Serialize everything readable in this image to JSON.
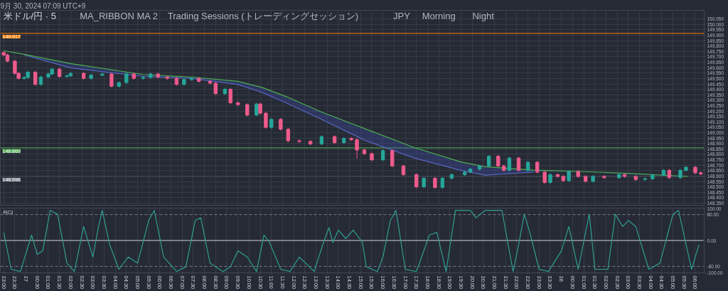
{
  "chart_data": [
    {
      "type": "candlestick",
      "title": "米ドル/円 · 5",
      "subtitle": "9月 30, 2024 07:09 UTC+9",
      "annotations": [
        "MA_RIBBON MA 2",
        "Trading Sessions (トレーディングセッション)",
        "JPY",
        "Morning",
        "Night"
      ],
      "xlim": [
        "2024-09-26T22:51",
        "2024-09-28T06:24"
      ],
      "ylim": [
        148.33,
        150.13
      ],
      "grid": true,
      "tick_labels": "y",
      "xticks": [
        {
          "value": "2024-09-26T23:00",
          "label": null
        },
        {
          "value": "2024-09-26T23:30",
          "label": null
        },
        {
          "value": "2024-09-27T00:00",
          "label": null
        },
        {
          "value": "2024-09-27T00:30",
          "label": null
        },
        {
          "value": "2024-09-27T01:00",
          "label": null
        },
        {
          "value": "2024-09-27T01:30",
          "label": null
        },
        {
          "value": "2024-09-27T02:00",
          "label": null
        },
        {
          "value": "2024-09-27T02:30",
          "label": null
        },
        {
          "value": "2024-09-27T03:00",
          "label": null
        },
        {
          "value": "2024-09-27T03:30",
          "label": null
        },
        {
          "value": "2024-09-27T04:00",
          "label": null
        },
        {
          "value": "2024-09-27T04:30",
          "label": null
        },
        {
          "value": "2024-09-27T05:00",
          "label": null
        },
        {
          "value": "2024-09-27T05:30",
          "label": null
        },
        {
          "value": "2024-09-27T06:00",
          "label": null
        },
        {
          "value": "2024-09-27T06:30",
          "label": null
        },
        {
          "value": "2024-09-27T07:00",
          "label": null
        },
        {
          "value": "2024-09-27T07:30",
          "label": null
        },
        {
          "value": "2024-09-27T08:00",
          "label": null
        },
        {
          "value": "2024-09-27T08:30",
          "label": null
        },
        {
          "value": "2024-09-27T09:00",
          "label": null
        },
        {
          "value": "2024-09-27T09:30",
          "label": null
        },
        {
          "value": "2024-09-27T10:00",
          "label": null
        },
        {
          "value": "2024-09-27T10:30",
          "label": null
        },
        {
          "value": "2024-09-27T11:00",
          "label": null
        },
        {
          "value": "2024-09-27T11:30",
          "label": null
        },
        {
          "value": "2024-09-27T12:00",
          "label": null
        },
        {
          "value": "2024-09-27T12:30",
          "label": null
        },
        {
          "value": "2024-09-27T13:00",
          "label": null
        },
        {
          "value": "2024-09-27T13:30",
          "label": null
        },
        {
          "value": "2024-09-27T14:00",
          "label": null
        },
        {
          "value": "2024-09-27T14:30",
          "label": null
        },
        {
          "value": "2024-09-27T15:00",
          "label": null
        },
        {
          "value": "2024-09-27T15:30",
          "label": null
        },
        {
          "value": "2024-09-27T16:00",
          "label": null
        },
        {
          "value": "2024-09-27T16:30",
          "label": null
        },
        {
          "value": "2024-09-27T17:00",
          "label": null
        },
        {
          "value": "2024-09-27T17:30",
          "label": null
        },
        {
          "value": "2024-09-27T18:00",
          "label": null
        },
        {
          "value": "2024-09-27T18:30",
          "label": null
        },
        {
          "value": "2024-09-27T19:00",
          "label": null
        },
        {
          "value": "2024-09-27T19:30",
          "label": null
        },
        {
          "value": "2024-09-27T20:00",
          "label": null
        },
        {
          "value": "2024-09-27T20:30",
          "label": null
        },
        {
          "value": "2024-09-27T21:00",
          "label": null
        },
        {
          "value": "2024-09-27T21:30",
          "label": null
        },
        {
          "value": "2024-09-27T22:00",
          "label": null
        },
        {
          "value": "2024-09-27T22:30",
          "label": null
        },
        {
          "value": "2024-09-27T23:00",
          "label": null
        },
        {
          "value": "2024-09-27T23:30",
          "label": null
        },
        {
          "value": "2024-09-28T00:00",
          "label": null
        },
        {
          "value": "2024-09-28T00:30",
          "label": null
        },
        {
          "value": "2024-09-28T01:00",
          "label": null
        },
        {
          "value": "2024-09-28T01:30",
          "label": null
        },
        {
          "value": "2024-09-28T02:00",
          "label": null
        },
        {
          "value": "2024-09-28T02:30",
          "label": null
        },
        {
          "value": "2024-09-28T03:00",
          "label": null
        },
        {
          "value": "2024-09-28T03:30",
          "label": null
        },
        {
          "value": "2024-09-28T04:00",
          "label": null
        },
        {
          "value": "2024-09-28T04:30",
          "label": null
        },
        {
          "value": "2024-09-28T05:00",
          "label": null
        },
        {
          "value": "2024-09-28T05:30",
          "label": null
        },
        {
          "value": "2024-09-28T06:00",
          "label": null
        }
      ],
      "yticks": [
        {
          "value": 148.35,
          "label": "148.350"
        },
        {
          "value": 148.4,
          "label": "148.400"
        },
        {
          "value": 148.45,
          "label": "148.450"
        },
        {
          "value": 148.5,
          "label": "148.500"
        },
        {
          "value": 148.55,
          "label": "148.550"
        },
        {
          "value": 148.6,
          "label": "148.600"
        },
        {
          "value": 148.65,
          "label": "148.650"
        },
        {
          "value": 148.7,
          "label": "148.700"
        },
        {
          "value": 148.75,
          "label": "148.750"
        },
        {
          "value": 148.8,
          "label": "148.800"
        },
        {
          "value": 148.85,
          "label": "148.850"
        },
        {
          "value": 148.9,
          "label": "148.900"
        },
        {
          "value": 148.95,
          "label": "148.950"
        },
        {
          "value": 149,
          "label": "149.000"
        },
        {
          "value": 149.05,
          "label": "149.050"
        },
        {
          "value": 149.1,
          "label": "149.100"
        },
        {
          "value": 149.15,
          "label": "149.150"
        },
        {
          "value": 149.2,
          "label": "149.200"
        },
        {
          "value": 149.25,
          "label": "149.250"
        },
        {
          "value": 149.3,
          "label": "149.300"
        },
        {
          "value": 149.35,
          "label": "149.350"
        },
        {
          "value": 149.4,
          "label": "149.400"
        },
        {
          "value": 149.45,
          "label": "149.450"
        },
        {
          "value": 149.5,
          "label": "149.500"
        },
        {
          "value": 149.55,
          "label": "149.550"
        },
        {
          "value": 149.6,
          "label": "149.600"
        },
        {
          "value": 149.65,
          "label": "149.650"
        },
        {
          "value": 149.7,
          "label": "149.700"
        },
        {
          "value": 149.75,
          "label": "149.750"
        },
        {
          "value": 149.8,
          "label": "149.800"
        },
        {
          "value": 149.85,
          "label": "149.850"
        },
        {
          "value": 149.9,
          "label": "149.900"
        },
        {
          "value": 149.95,
          "label": "149.950"
        },
        {
          "value": 150,
          "label": "150.000"
        },
        {
          "value": 150.05,
          "label": "150.050"
        }
      ],
      "ref_lines": [
        {
          "axis": "y",
          "value": 149.917,
          "label": "149.917",
          "color": "#f57c00",
          "line_style": "solid"
        },
        {
          "axis": "y",
          "value": 148.86,
          "label": "148.860",
          "color": "#4caf50",
          "line_style": "solid"
        },
        {
          "axis": "y",
          "value": 148.596,
          "label": "148.596",
          "color": "#787b86",
          "line_style": "dotted"
        }
      ],
      "series": [
        {
          "type": "line",
          "color": "#5c6bc0",
          "x": [
            "2024-09-26T23:55",
            "2024-09-27T02:00",
            "2024-09-27T05:15",
            "2024-09-27T07:25",
            "2024-09-27T09:30",
            "2024-09-27T10:35",
            "2024-09-27T11:40",
            "2024-09-27T13:15",
            "2024-09-27T15:15",
            "2024-09-27T17:25",
            "2024-09-27T19:30",
            "2024-09-27T20:35",
            "2024-09-27T22:45"
          ],
          "values": [
            149.718,
            149.599,
            149.519,
            149.502,
            149.446,
            149.372,
            149.276,
            149.123,
            148.925,
            148.766,
            148.653,
            148.608,
            148.636
          ]
        },
        {
          "type": "line",
          "color": "#4caf50",
          "x": [
            "2024-09-26T23:00",
            "2024-09-26T23:55",
            "2024-09-27T02:00",
            "2024-09-27T05:15",
            "2024-09-27T07:25",
            "2024-09-27T09:30",
            "2024-09-27T10:35",
            "2024-09-27T11:40",
            "2024-09-27T13:15",
            "2024-09-27T15:15",
            "2024-09-27T17:25",
            "2024-09-27T19:30",
            "2024-09-27T20:35",
            "2024-09-27T22:45",
            "2024-09-28T00:50",
            "2024-09-28T03:00",
            "2024-09-28T05:40"
          ],
          "values": [
            149.757,
            149.723,
            149.638,
            149.537,
            149.514,
            149.474,
            149.418,
            149.333,
            149.191,
            149.032,
            148.862,
            148.73,
            148.685,
            148.655,
            148.642,
            148.625,
            148.596
          ],
          "lower": [
            149.757,
            149.718,
            149.599,
            149.519,
            149.502,
            149.446,
            149.372,
            149.276,
            149.123,
            148.925,
            148.766,
            148.653,
            148.608,
            148.636,
            148.642,
            148.613,
            148.596
          ],
          "upper": [
            149.757,
            149.723,
            149.638,
            149.537,
            149.514,
            149.474,
            149.418,
            149.333,
            149.191,
            149.032,
            148.862,
            148.73,
            148.685,
            148.655,
            148.642,
            148.625,
            148.596
          ]
        },
        {
          "type": "candlestick",
          "x": [
            "2024-09-26T23:00",
            "2024-09-26T23:10",
            "2024-09-26T23:30",
            "2024-09-26T23:40",
            "2024-09-26T23:55",
            "2024-09-27T00:05",
            "2024-09-27T00:25",
            "2024-09-27T00:40",
            "2024-09-27T01:00",
            "2024-09-27T01:10",
            "2024-09-27T01:30",
            "2024-09-27T01:50",
            "2024-09-27T02:00",
            "2024-09-27T02:35",
            "2024-09-27T02:55",
            "2024-09-27T03:25",
            "2024-09-27T03:50",
            "2024-09-27T04:10",
            "2024-09-27T04:30",
            "2024-09-27T04:50",
            "2024-09-27T05:15",
            "2024-09-27T05:35",
            "2024-09-27T05:55",
            "2024-09-27T06:20",
            "2024-09-27T06:45",
            "2024-09-27T07:05",
            "2024-09-27T07:25",
            "2024-09-27T07:45",
            "2024-09-27T08:15",
            "2024-09-27T08:30",
            "2024-09-27T08:55",
            "2024-09-27T09:10",
            "2024-09-27T09:30",
            "2024-09-27T09:55",
            "2024-09-27T10:20",
            "2024-09-27T10:30",
            "2024-09-27T10:45",
            "2024-09-27T11:00",
            "2024-09-27T11:25",
            "2024-09-27T11:45",
            "2024-09-27T12:15",
            "2024-09-27T12:45",
            "2024-09-27T13:15",
            "2024-09-27T13:50",
            "2024-09-27T14:15",
            "2024-09-27T14:35",
            "2024-09-27T14:50",
            "2024-09-27T15:10",
            "2024-09-27T15:30",
            "2024-09-27T16:00",
            "2024-09-27T16:25",
            "2024-09-27T16:55",
            "2024-09-27T17:30",
            "2024-09-27T17:50",
            "2024-09-27T18:20",
            "2024-09-27T18:40",
            "2024-09-27T19:05",
            "2024-09-27T19:40",
            "2024-09-27T19:55",
            "2024-09-27T20:20",
            "2024-09-27T20:45",
            "2024-09-27T21:10",
            "2024-09-27T21:25",
            "2024-09-27T21:40",
            "2024-09-27T22:05",
            "2024-09-27T22:30",
            "2024-09-27T22:55",
            "2024-09-27T23:15",
            "2024-09-27T23:30",
            "2024-09-27T23:50",
            "2024-09-28T00:05",
            "2024-09-28T00:20",
            "2024-09-28T00:45",
            "2024-09-28T01:05",
            "2024-09-28T01:25",
            "2024-09-28T01:55",
            "2024-09-28T02:35",
            "2024-09-28T02:50",
            "2024-09-28T03:20",
            "2024-09-28T03:45",
            "2024-09-28T04:05",
            "2024-09-28T04:35",
            "2024-09-28T04:50",
            "2024-09-28T05:20",
            "2024-09-28T05:35",
            "2024-09-28T06:00",
            "2024-09-28T06:15"
          ],
          "ohlc": [
            [
              149.74,
              149.752,
              149.706,
              149.718
            ],
            [
              149.718,
              149.73,
              149.649,
              149.661
            ],
            [
              149.661,
              149.673,
              149.536,
              149.548
            ],
            [
              149.548,
              149.56,
              149.49,
              149.502
            ],
            [
              149.502,
              149.522,
              149.49,
              149.51
            ],
            [
              149.51,
              149.571,
              149.498,
              149.559
            ],
            [
              149.559,
              149.571,
              149.434,
              149.446
            ],
            [
              149.446,
              149.526,
              149.434,
              149.514
            ],
            [
              149.514,
              149.554,
              149.502,
              149.542
            ],
            [
              149.542,
              149.599,
              149.53,
              149.587
            ],
            [
              149.587,
              149.599,
              149.507,
              149.519
            ],
            [
              149.519,
              149.537,
              149.507,
              149.525
            ],
            [
              149.525,
              149.56,
              149.513,
              149.548
            ],
            [
              149.548,
              149.56,
              149.49,
              149.502
            ],
            [
              149.502,
              149.543,
              149.49,
              149.531
            ],
            [
              149.531,
              149.554,
              149.519,
              149.542
            ],
            [
              149.542,
              149.554,
              149.417,
              149.429
            ],
            [
              149.429,
              149.475,
              149.417,
              149.463
            ],
            [
              149.463,
              149.554,
              149.451,
              149.542
            ],
            [
              149.542,
              149.554,
              149.49,
              149.502
            ],
            [
              149.502,
              149.522,
              149.49,
              149.51
            ],
            [
              149.51,
              149.554,
              149.498,
              149.542
            ],
            [
              149.542,
              149.554,
              149.502,
              149.514
            ],
            [
              149.514,
              149.526,
              149.49,
              149.502
            ],
            [
              149.502,
              149.514,
              149.434,
              149.446
            ],
            [
              149.446,
              149.503,
              149.434,
              149.491
            ],
            [
              149.491,
              149.514,
              149.479,
              149.502
            ],
            [
              149.502,
              149.514,
              149.462,
              149.474
            ],
            [
              149.474,
              149.486,
              149.445,
              149.457
            ],
            [
              149.457,
              149.469,
              149.349,
              149.361
            ],
            [
              149.361,
              149.413,
              149.349,
              149.401
            ],
            [
              149.401,
              149.413,
              149.264,
              149.276
            ],
            [
              149.276,
              149.288,
              149.247,
              149.259
            ],
            [
              149.259,
              149.271,
              149.151,
              149.163
            ],
            [
              149.163,
              149.277,
              149.151,
              149.265
            ],
            [
              149.265,
              149.277,
              149.168,
              149.18
            ],
            [
              149.18,
              149.192,
              149.037,
              149.049
            ],
            [
              149.049,
              149.135,
              149.037,
              149.123
            ],
            [
              149.123,
              149.135,
              149.02,
              149.032
            ],
            [
              149.032,
              149.044,
              148.913,
              148.925
            ],
            [
              148.925,
              148.937,
              148.907,
              148.919
            ],
            [
              148.919,
              148.931,
              148.885,
              148.897
            ],
            [
              148.897,
              148.976,
              148.885,
              148.964
            ],
            [
              148.964,
              148.976,
              148.896,
              148.908
            ],
            [
              148.908,
              148.959,
              148.896,
              148.947
            ],
            [
              148.947,
              148.959,
              148.924,
              148.936
            ],
            [
              148.936,
              148.948,
              148.76,
              148.84
            ],
            [
              148.84,
              148.852,
              148.794,
              148.806
            ],
            [
              148.806,
              148.818,
              148.737,
              148.749
            ],
            [
              148.749,
              148.846,
              148.737,
              148.834
            ],
            [
              148.834,
              148.846,
              148.681,
              148.693
            ],
            [
              148.693,
              148.705,
              148.601,
              148.613
            ],
            [
              148.613,
              148.625,
              148.488,
              148.5
            ],
            [
              148.5,
              148.591,
              148.488,
              148.579
            ],
            [
              148.579,
              148.591,
              148.482,
              148.494
            ],
            [
              148.494,
              148.591,
              148.482,
              148.579
            ],
            [
              148.579,
              148.625,
              148.567,
              148.613
            ],
            [
              148.613,
              148.648,
              148.601,
              148.636
            ],
            [
              148.636,
              148.676,
              148.624,
              148.664
            ],
            [
              148.664,
              148.705,
              148.652,
              148.693
            ],
            [
              148.693,
              148.795,
              148.681,
              148.783
            ],
            [
              148.783,
              148.795,
              148.681,
              148.693
            ],
            [
              148.693,
              148.705,
              148.641,
              148.653
            ],
            [
              148.653,
              148.778,
              148.641,
              148.766
            ],
            [
              148.766,
              148.778,
              148.641,
              148.653
            ],
            [
              148.653,
              148.739,
              148.641,
              148.727
            ],
            [
              148.727,
              148.739,
              148.624,
              148.636
            ],
            [
              148.636,
              148.648,
              148.528,
              148.54
            ],
            [
              148.54,
              148.625,
              148.528,
              148.613
            ],
            [
              148.613,
              148.625,
              148.584,
              148.596
            ],
            [
              148.596,
              148.608,
              148.545,
              148.557
            ],
            [
              148.557,
              148.654,
              148.545,
              148.642
            ],
            [
              148.642,
              148.654,
              148.584,
              148.596
            ],
            [
              148.596,
              148.608,
              148.539,
              148.551
            ],
            [
              148.551,
              148.608,
              148.539,
              148.596
            ],
            [
              148.596,
              148.608,
              148.573,
              148.585
            ],
            [
              148.585,
              148.625,
              148.573,
              148.613
            ],
            [
              148.613,
              148.625,
              148.584,
              148.596
            ],
            [
              148.596,
              148.608,
              148.556,
              148.568
            ],
            [
              148.568,
              148.587,
              148.556,
              148.575
            ],
            [
              148.575,
              148.62,
              148.563,
              148.608
            ],
            [
              148.608,
              148.665,
              148.596,
              148.653
            ],
            [
              148.653,
              148.665,
              148.573,
              148.585
            ],
            [
              148.585,
              148.665,
              148.573,
              148.653
            ],
            [
              148.653,
              148.693,
              148.641,
              148.681
            ],
            [
              148.681,
              148.693,
              148.618,
              148.63
            ],
            [
              148.63,
              148.642,
              148.607,
              148.619
            ]
          ],
          "colors": [
            "#ef5b8c",
            "#ef5b8c",
            "#ef5b8c",
            "#ef5b8c",
            "#26a69a",
            "#26a69a",
            "#ef5b8c",
            "#26a69a",
            "#26a69a",
            "#26a69a",
            "#ef5b8c",
            "#26a69a",
            "#26a69a",
            "#ef5b8c",
            "#26a69a",
            "#26a69a",
            "#ef5b8c",
            "#26a69a",
            "#26a69a",
            "#ef5b8c",
            "#26a69a",
            "#26a69a",
            "#ef5b8c",
            "#ef5b8c",
            "#ef5b8c",
            "#26a69a",
            "#26a69a",
            "#ef5b8c",
            "#ef5b8c",
            "#ef5b8c",
            "#26a69a",
            "#ef5b8c",
            "#ef5b8c",
            "#ef5b8c",
            "#26a69a",
            "#ef5b8c",
            "#ef5b8c",
            "#26a69a",
            "#ef5b8c",
            "#ef5b8c",
            "#ef5b8c",
            "#ef5b8c",
            "#26a69a",
            "#ef5b8c",
            "#26a69a",
            "#ef5b8c",
            "#ef5b8c",
            "#ef5b8c",
            "#ef5b8c",
            "#26a69a",
            "#ef5b8c",
            "#ef5b8c",
            "#ef5b8c",
            "#26a69a",
            "#ef5b8c",
            "#26a69a",
            "#26a69a",
            "#26a69a",
            "#26a69a",
            "#26a69a",
            "#26a69a",
            "#ef5b8c",
            "#ef5b8c",
            "#26a69a",
            "#ef5b8c",
            "#26a69a",
            "#ef5b8c",
            "#ef5b8c",
            "#26a69a",
            "#ef5b8c",
            "#ef5b8c",
            "#26a69a",
            "#ef5b8c",
            "#ef5b8c",
            "#26a69a",
            "#ef5b8c",
            "#26a69a",
            "#ef5b8c",
            "#ef5b8c",
            "#26a69a",
            "#26a69a",
            "#26a69a",
            "#ef5b8c",
            "#26a69a",
            "#26a69a",
            "#ef5b8c",
            "#ef5b8c"
          ]
        }
      ]
    },
    {
      "type": "line",
      "title": "RCI",
      "xlim": [
        "2024-09-26T22:51",
        "2024-09-28T06:24"
      ],
      "ylim": [
        -100,
        100
      ],
      "grid": "x",
      "xticks": [
        {
          "value": "2024-09-26T23:00",
          "label": "23:00"
        },
        {
          "value": "2024-09-26T23:30",
          "label": "23:30"
        },
        {
          "value": "2024-09-27T00:00",
          "label": "27"
        },
        {
          "value": "2024-09-27T00:30",
          "label": "00:30"
        },
        {
          "value": "2024-09-27T01:00",
          "label": "01:00"
        },
        {
          "value": "2024-09-27T01:30",
          "label": "01:30"
        },
        {
          "value": "2024-09-27T02:00",
          "label": "02:00"
        },
        {
          "value": "2024-09-27T02:30",
          "label": "02:30"
        },
        {
          "value": "2024-09-27T03:00",
          "label": "03:00"
        },
        {
          "value": "2024-09-27T03:30",
          "label": "03:30"
        },
        {
          "value": "2024-09-27T04:00",
          "label": "04:00"
        },
        {
          "value": "2024-09-27T04:30",
          "label": "04:30"
        },
        {
          "value": "2024-09-27T05:00",
          "label": "05:00"
        },
        {
          "value": "2024-09-27T05:30",
          "label": "05:30"
        },
        {
          "value": "2024-09-27T06:00",
          "label": "06:00"
        },
        {
          "value": "2024-09-27T06:30",
          "label": "06:30"
        },
        {
          "value": "2024-09-27T07:00",
          "label": "07:00"
        },
        {
          "value": "2024-09-27T07:30",
          "label": "07:30"
        },
        {
          "value": "2024-09-27T08:00",
          "label": "08:00"
        },
        {
          "value": "2024-09-27T08:30",
          "label": "08:30"
        },
        {
          "value": "2024-09-27T09:00",
          "label": "09:00"
        },
        {
          "value": "2024-09-27T09:30",
          "label": "09:30"
        },
        {
          "value": "2024-09-27T10:00",
          "label": "10:00"
        },
        {
          "value": "2024-09-27T10:30",
          "label": "10:30"
        },
        {
          "value": "2024-09-27T11:00",
          "label": "11:00"
        },
        {
          "value": "2024-09-27T11:30",
          "label": "11:30"
        },
        {
          "value": "2024-09-27T12:00",
          "label": "12:00"
        },
        {
          "value": "2024-09-27T12:30",
          "label": "12:30"
        },
        {
          "value": "2024-09-27T13:00",
          "label": "13:00"
        },
        {
          "value": "2024-09-27T13:30",
          "label": "13:30"
        },
        {
          "value": "2024-09-27T14:00",
          "label": "14:00"
        },
        {
          "value": "2024-09-27T14:30",
          "label": "14:30"
        },
        {
          "value": "2024-09-27T15:00",
          "label": "15:00"
        },
        {
          "value": "2024-09-27T15:30",
          "label": "15:30"
        },
        {
          "value": "2024-09-27T16:00",
          "label": "16:00"
        },
        {
          "value": "2024-09-27T16:30",
          "label": "16:30"
        },
        {
          "value": "2024-09-27T17:00",
          "label": "17:00"
        },
        {
          "value": "2024-09-27T17:30",
          "label": "17:30"
        },
        {
          "value": "2024-09-27T18:00",
          "label": "18:00"
        },
        {
          "value": "2024-09-27T18:30",
          "label": "18:30"
        },
        {
          "value": "2024-09-27T19:00",
          "label": "19:00"
        },
        {
          "value": "2024-09-27T19:30",
          "label": "19:30"
        },
        {
          "value": "2024-09-27T20:00",
          "label": "20:00"
        },
        {
          "value": "2024-09-27T20:30",
          "label": "20:30"
        },
        {
          "value": "2024-09-27T21:00",
          "label": "21:00"
        },
        {
          "value": "2024-09-27T21:30",
          "label": "21:30"
        },
        {
          "value": "2024-09-27T22:00",
          "label": "22:00"
        },
        {
          "value": "2024-09-27T22:30",
          "label": "22:30"
        },
        {
          "value": "2024-09-27T23:00",
          "label": "23:00"
        },
        {
          "value": "2024-09-27T23:30",
          "label": "23:30"
        },
        {
          "value": "2024-09-28T00:00",
          "label": "28"
        },
        {
          "value": "2024-09-28T00:30",
          "label": "00:30"
        },
        {
          "value": "2024-09-28T01:00",
          "label": "01:00"
        },
        {
          "value": "2024-09-28T01:30",
          "label": "01:30"
        },
        {
          "value": "2024-09-28T02:00",
          "label": "02:00"
        },
        {
          "value": "2024-09-28T02:30",
          "label": "02:30"
        },
        {
          "value": "2024-09-28T03:00",
          "label": "03:00"
        },
        {
          "value": "2024-09-28T03:30",
          "label": "03:30"
        },
        {
          "value": "2024-09-28T04:00",
          "label": "04:00"
        },
        {
          "value": "2024-09-28T04:30",
          "label": "04:30"
        },
        {
          "value": "2024-09-28T05:00",
          "label": "05:00"
        },
        {
          "value": "2024-09-28T05:30",
          "label": "05:30"
        },
        {
          "value": "2024-09-28T06:00",
          "label": "06:00"
        }
      ],
      "yticks": [
        {
          "value": 100,
          "label": "100.00"
        },
        {
          "value": 80,
          "label": "80.00"
        },
        {
          "value": 0,
          "label": "0.00"
        },
        {
          "value": -80,
          "label": "-80.00"
        },
        {
          "value": -100,
          "label": "-100.00"
        }
      ],
      "ref_lines": [
        {
          "axis": "y",
          "value": 80,
          "color": "#787b86",
          "line_style": "dashed"
        },
        {
          "axis": "y",
          "value": 0,
          "color": "#d1d4dc",
          "line_style": "solid"
        },
        {
          "axis": "y",
          "value": -80,
          "color": "#787b86",
          "line_style": "dashed"
        }
      ],
      "series": [
        {
          "color": "#2f9e8f",
          "x": [
            "2024-09-26T23:00",
            "2024-09-26T23:20",
            "2024-09-26T23:45",
            "2024-09-27T00:15",
            "2024-09-27T00:30",
            "2024-09-27T00:45",
            "2024-09-27T01:05",
            "2024-09-27T01:25",
            "2024-09-27T01:50",
            "2024-09-27T02:10",
            "2024-09-27T02:35",
            "2024-09-27T03:00",
            "2024-09-27T03:15",
            "2024-09-27T03:25",
            "2024-09-27T03:45",
            "2024-09-27T04:10",
            "2024-09-27T04:35",
            "2024-09-27T05:00",
            "2024-09-27T05:30",
            "2024-09-27T05:45",
            "2024-09-27T06:10",
            "2024-09-27T06:45",
            "2024-09-27T07:10",
            "2024-09-27T07:35",
            "2024-09-27T07:50",
            "2024-09-27T08:15",
            "2024-09-27T08:50",
            "2024-09-27T09:10",
            "2024-09-27T09:30",
            "2024-09-27T09:55",
            "2024-09-27T10:20",
            "2024-09-27T10:40",
            "2024-09-27T10:55",
            "2024-09-27T11:25",
            "2024-09-27T11:50",
            "2024-09-27T12:15",
            "2024-09-27T12:55",
            "2024-09-27T13:20",
            "2024-09-27T13:35",
            "2024-09-27T13:45",
            "2024-09-27T14:00",
            "2024-09-27T14:20",
            "2024-09-27T14:40",
            "2024-09-27T15:05",
            "2024-09-27T15:15",
            "2024-09-27T15:45",
            "2024-09-27T16:00",
            "2024-09-27T16:20",
            "2024-09-27T16:35",
            "2024-09-27T17:00",
            "2024-09-27T17:30",
            "2024-09-27T18:05",
            "2024-09-27T18:25",
            "2024-09-27T18:50",
            "2024-09-27T19:15",
            "2024-09-27T19:55",
            "2024-09-27T20:10",
            "2024-09-27T20:35",
            "2024-09-27T21:20",
            "2024-09-27T21:50",
            "2024-09-27T22:05",
            "2024-09-27T22:20",
            "2024-09-27T22:35",
            "2024-09-27T23:00",
            "2024-09-27T23:25",
            "2024-09-28T00:00",
            "2024-09-28T00:20",
            "2024-09-28T00:45",
            "2024-09-28T01:15",
            "2024-09-28T01:30",
            "2024-09-28T02:05",
            "2024-09-28T02:25",
            "2024-09-28T02:45",
            "2024-09-28T03:00",
            "2024-09-28T03:20",
            "2024-09-28T03:55",
            "2024-09-28T04:25",
            "2024-09-28T05:00",
            "2024-09-28T05:15",
            "2024-09-28T05:50",
            "2024-09-28T06:10"
          ],
          "values": [
            25,
            -89,
            -96,
            17,
            -43,
            -32,
            93,
            81,
            -70,
            -96,
            43,
            -51,
            43,
            93,
            -13,
            -89,
            -51,
            -70,
            62,
            93,
            -51,
            -96,
            -81,
            62,
            70,
            -70,
            -96,
            -81,
            -32,
            -51,
            -96,
            17,
            -6,
            -89,
            -96,
            -51,
            -96,
            -6,
            40,
            -6,
            32,
            6,
            32,
            -6,
            -81,
            -96,
            -51,
            62,
            93,
            -89,
            -96,
            17,
            25,
            -96,
            93,
            93,
            70,
            93,
            93,
            -96,
            -13,
            81,
            25,
            -89,
            -96,
            -32,
            43,
            -89,
            81,
            -89,
            -89,
            81,
            43,
            62,
            43,
            -89,
            -70,
            81,
            93,
            -89,
            -13
          ]
        }
      ]
    }
  ]
}
